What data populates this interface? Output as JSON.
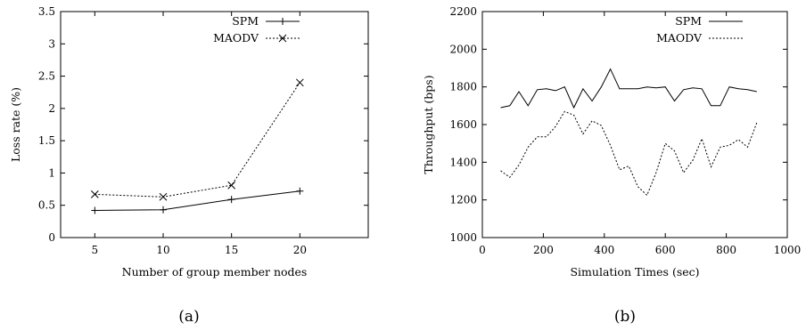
{
  "chart_data": [
    {
      "type": "line",
      "title": "",
      "xlabel": "Number of group member nodes",
      "ylabel": "Loss rate (%)",
      "xlim": [
        2.5,
        25
      ],
      "ylim": [
        0,
        3.5
      ],
      "x_ticks": [
        "5",
        "10",
        "15",
        "20"
      ],
      "y_ticks": [
        "0",
        "0.5",
        "1",
        "1.5",
        "2",
        "2.5",
        "3",
        "3.5"
      ],
      "legend_position": "top-right",
      "caption": "(a)",
      "series": [
        {
          "name": "SPM",
          "style": "solid",
          "marker": "plus",
          "x": [
            5,
            10,
            15,
            20
          ],
          "y": [
            0.42,
            0.43,
            0.59,
            0.72
          ]
        },
        {
          "name": "MAODV",
          "style": "dotted",
          "marker": "cross",
          "x": [
            5,
            10,
            15,
            20
          ],
          "y": [
            0.67,
            0.63,
            0.81,
            2.4
          ]
        }
      ]
    },
    {
      "type": "line",
      "title": "",
      "xlabel": "Simulation Times (sec)",
      "ylabel": "Throughput (bps)",
      "xlim": [
        0,
        1000
      ],
      "ylim": [
        1000,
        2200
      ],
      "x_ticks": [
        "0",
        "200",
        "400",
        "600",
        "800",
        "1000"
      ],
      "y_ticks": [
        "1000",
        "1200",
        "1400",
        "1600",
        "1800",
        "2000",
        "2200"
      ],
      "legend_position": "top-right",
      "caption": "(b)",
      "series": [
        {
          "name": "SPM",
          "style": "solid",
          "x": [
            60,
            90,
            120,
            150,
            180,
            210,
            240,
            270,
            300,
            330,
            360,
            390,
            420,
            450,
            480,
            510,
            540,
            570,
            600,
            630,
            660,
            690,
            720,
            750,
            780,
            810,
            840,
            870,
            900
          ],
          "y": [
            1690,
            1700,
            1775,
            1700,
            1785,
            1790,
            1780,
            1800,
            1690,
            1790,
            1725,
            1800,
            1895,
            1790,
            1790,
            1790,
            1800,
            1795,
            1800,
            1725,
            1785,
            1795,
            1790,
            1700,
            1700,
            1800,
            1790,
            1785,
            1775
          ]
        },
        {
          "name": "MAODV",
          "style": "dotted",
          "x": [
            60,
            90,
            120,
            150,
            180,
            210,
            240,
            270,
            300,
            330,
            360,
            390,
            420,
            450,
            480,
            510,
            540,
            570,
            600,
            630,
            660,
            690,
            720,
            750,
            780,
            810,
            840,
            870,
            900
          ],
          "y": [
            1355,
            1320,
            1385,
            1480,
            1535,
            1535,
            1590,
            1670,
            1650,
            1550,
            1620,
            1595,
            1490,
            1360,
            1380,
            1270,
            1225,
            1345,
            1500,
            1460,
            1345,
            1410,
            1525,
            1375,
            1480,
            1490,
            1520,
            1480,
            1610
          ]
        }
      ]
    }
  ]
}
